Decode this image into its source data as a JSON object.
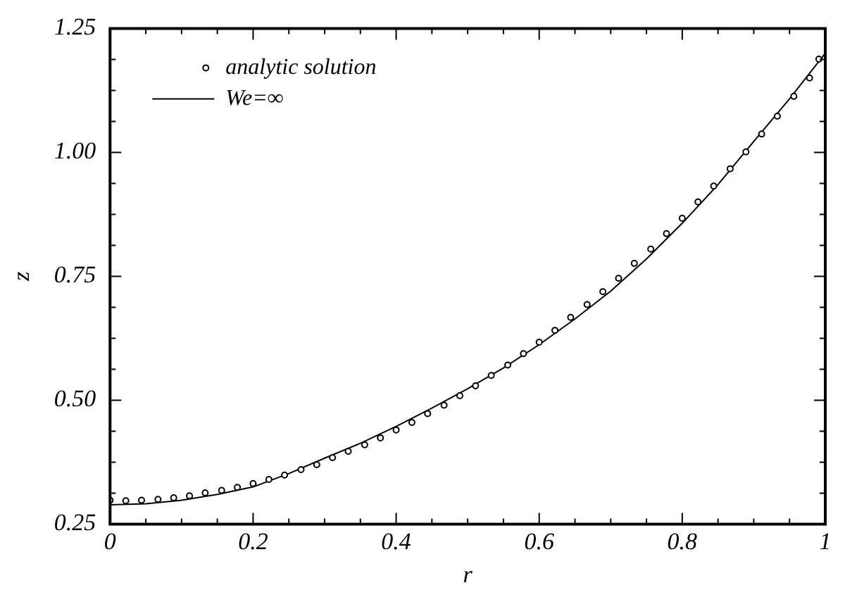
{
  "chart_data": {
    "type": "scatter",
    "xlabel": "r",
    "ylabel": "z",
    "xlim": [
      0,
      1
    ],
    "ylim": [
      0.25,
      1.25
    ],
    "xticks": [
      0,
      0.2,
      0.4,
      0.6,
      0.8,
      1
    ],
    "yticks": [
      0.25,
      {
        "value": 0.5,
        "label": "0.50"
      },
      0.75,
      {
        "value": 1,
        "label": "1.00"
      },
      1.25
    ],
    "grid": false,
    "legend": "top left",
    "series": [
      {
        "name": "analytic solution",
        "marker": "circle",
        "color": "#000000",
        "x": [
          0,
          0.022,
          0.044,
          0.067,
          0.089,
          0.111,
          0.133,
          0.156,
          0.178,
          0.2,
          0.222,
          0.244,
          0.267,
          0.289,
          0.311,
          0.333,
          0.356,
          0.378,
          0.4,
          0.422,
          0.444,
          0.467,
          0.489,
          0.511,
          0.533,
          0.556,
          0.578,
          0.6,
          0.622,
          0.644,
          0.667,
          0.689,
          0.711,
          0.733,
          0.756,
          0.778,
          0.8,
          0.822,
          0.844,
          0.867,
          0.889,
          0.911,
          0.933,
          0.956,
          0.978,
          0.991
        ],
        "values": [
          0.298,
          0.297,
          0.298,
          0.3,
          0.303,
          0.307,
          0.313,
          0.318,
          0.324,
          0.332,
          0.34,
          0.349,
          0.36,
          0.37,
          0.384,
          0.397,
          0.41,
          0.424,
          0.44,
          0.455,
          0.473,
          0.49,
          0.509,
          0.529,
          0.55,
          0.571,
          0.594,
          0.617,
          0.641,
          0.667,
          0.693,
          0.719,
          0.746,
          0.776,
          0.805,
          0.836,
          0.867,
          0.9,
          0.932,
          0.967,
          1.001,
          1.037,
          1.073,
          1.113,
          1.15,
          1.188
        ]
      },
      {
        "name": "We=∞",
        "type": "line",
        "marker": "none",
        "line_style": "solid",
        "color": "#000000",
        "x": [
          0,
          0.05,
          0.1,
          0.15,
          0.2,
          0.25,
          0.3,
          0.35,
          0.4,
          0.45,
          0.5,
          0.55,
          0.6,
          0.65,
          0.7,
          0.75,
          0.8,
          0.85,
          0.9,
          0.95,
          1
        ],
        "values": [
          0.289,
          0.291,
          0.298,
          0.31,
          0.325,
          0.352,
          0.383,
          0.413,
          0.447,
          0.484,
          0.523,
          0.565,
          0.612,
          0.664,
          0.72,
          0.785,
          0.857,
          0.935,
          1.022,
          1.108,
          1.2
        ]
      }
    ]
  }
}
